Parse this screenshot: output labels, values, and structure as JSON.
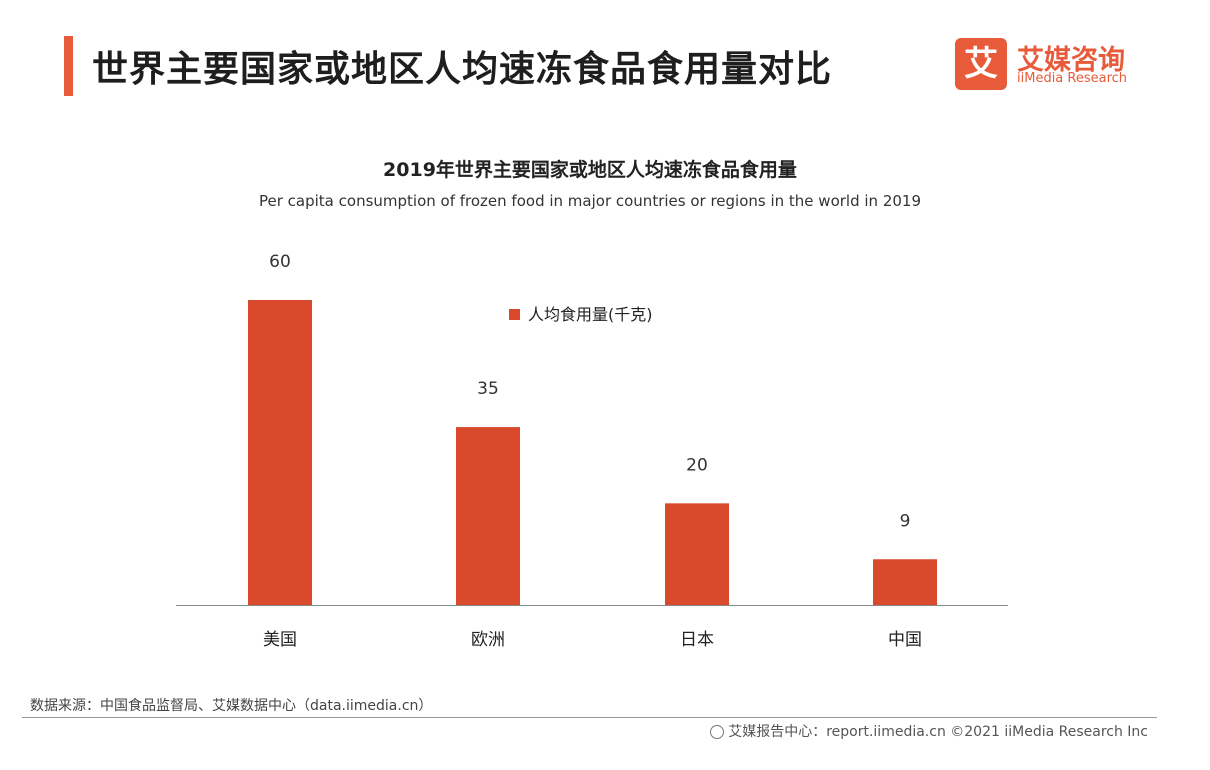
{
  "header": {
    "title": "世界主要国家或地区人均速冻食品食用量对比",
    "logo_mark": "艾",
    "logo_cn": "艾媒咨询",
    "logo_en": "iiMedia Research"
  },
  "colors": {
    "accent": "#e85b3a",
    "bar": "#d84a2b"
  },
  "chart_data": {
    "type": "bar",
    "title": "2019年世界主要国家或地区人均速冻食品食用量",
    "subtitle": "Per capita consumption of frozen food in major countries or regions in the world in 2019",
    "categories": [
      "美国",
      "欧洲",
      "日本",
      "中国"
    ],
    "series": [
      {
        "name": "人均食用量(千克)",
        "values": [
          60,
          35,
          20,
          9
        ]
      }
    ],
    "ylim": [
      0,
      60
    ],
    "legend_position": "top-center",
    "grid": false,
    "xlabel": "",
    "ylabel": ""
  },
  "footer": {
    "source": "数据来源：中国食品监督局、艾媒数据中心（data.iimedia.cn）",
    "report": "艾媒报告中心：report.iimedia.cn   ©2021  iiMedia Research  Inc"
  }
}
